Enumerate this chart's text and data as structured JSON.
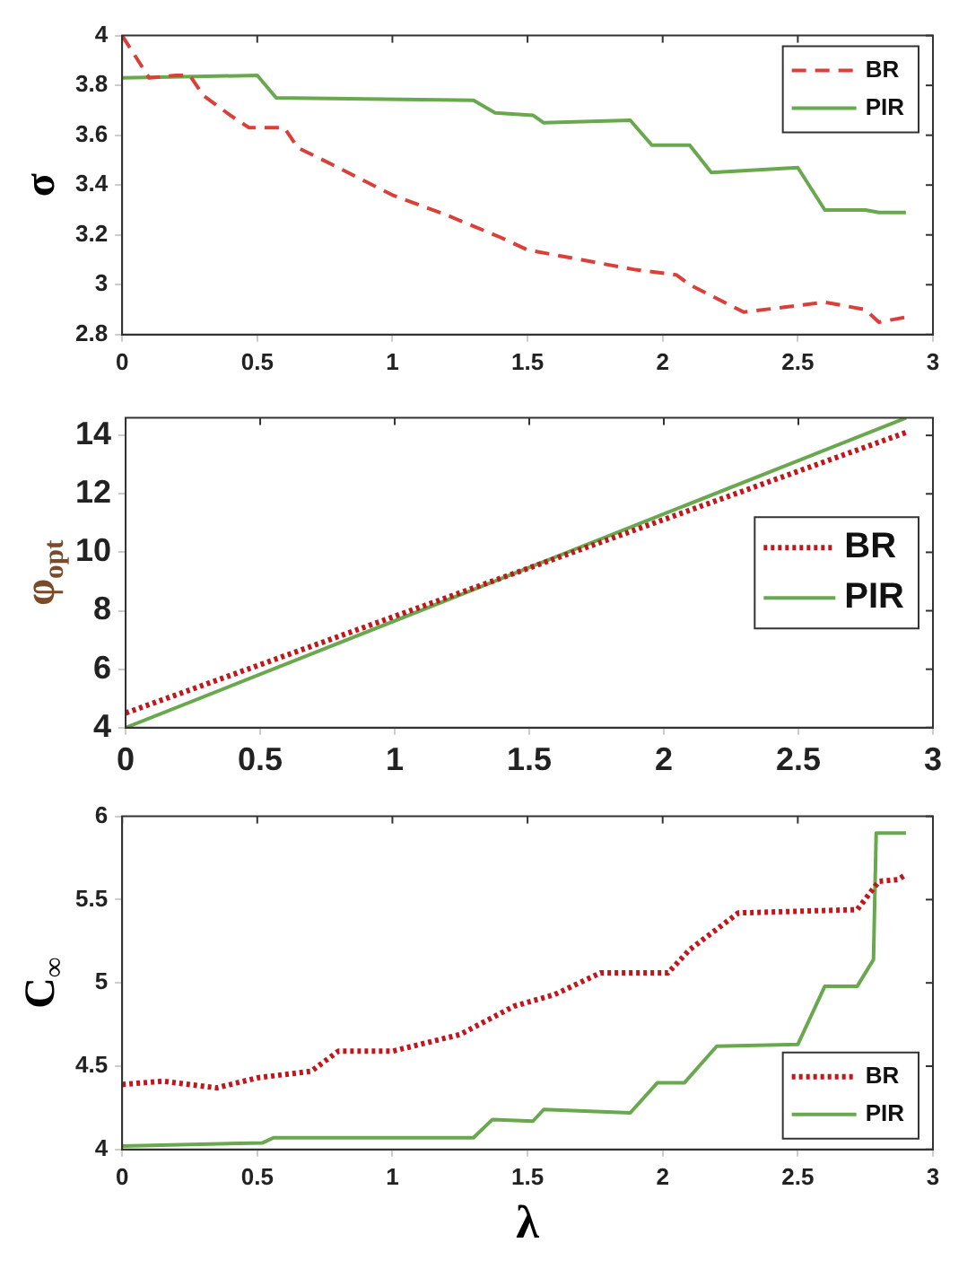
{
  "chart_data": [
    {
      "type": "line",
      "ylabel": "σ",
      "xlim": [
        0,
        3
      ],
      "xticks": [
        0,
        0.5,
        1,
        1.5,
        2,
        2.5,
        3
      ],
      "ylim": [
        2.8,
        4
      ],
      "yticks": [
        2.8,
        3,
        3.2,
        3.4,
        3.6,
        3.8,
        4
      ],
      "grid": false,
      "legend": "top right",
      "series": [
        {
          "name": "BR",
          "color": "#d9403a",
          "line_style": "dashed",
          "x": [
            0,
            0.1,
            0.2,
            0.25,
            0.3,
            0.4,
            0.47,
            0.6,
            0.65,
            0.8,
            1.0,
            1.2,
            1.4,
            1.5,
            1.7,
            1.9,
            2.05,
            2.1,
            2.3,
            2.45,
            2.6,
            2.75,
            2.8,
            2.9
          ],
          "values": [
            4.0,
            3.83,
            3.84,
            3.84,
            3.76,
            3.68,
            3.63,
            3.63,
            3.55,
            3.47,
            3.36,
            3.28,
            3.19,
            3.14,
            3.1,
            3.06,
            3.04,
            3.0,
            2.89,
            2.91,
            2.93,
            2.9,
            2.85,
            2.87
          ]
        },
        {
          "name": "PIR",
          "color": "#6aa84f",
          "line_style": "solid",
          "x": [
            0,
            0.5,
            0.57,
            1.3,
            1.38,
            1.52,
            1.56,
            1.88,
            1.96,
            2.1,
            2.18,
            2.5,
            2.6,
            2.75,
            2.8,
            2.9
          ],
          "values": [
            3.83,
            3.84,
            3.75,
            3.74,
            3.69,
            3.68,
            3.65,
            3.66,
            3.56,
            3.56,
            3.45,
            3.47,
            3.3,
            3.3,
            3.29,
            3.29
          ]
        }
      ]
    },
    {
      "type": "line",
      "ylabel": "φ$_{opt}$",
      "xlim": [
        0,
        3
      ],
      "xticks": [
        0,
        0.5,
        1,
        1.5,
        2,
        2.5,
        3
      ],
      "ylim": [
        4,
        14.6
      ],
      "yticks": [
        4,
        6,
        8,
        10,
        12,
        14
      ],
      "grid": false,
      "legend": "right",
      "series": [
        {
          "name": "BR",
          "color": "#c0171c",
          "line_style": "dotted",
          "x": [
            0,
            2.9
          ],
          "values": [
            4.5,
            14.1
          ]
        },
        {
          "name": "PIR",
          "color": "#6aa84f",
          "line_style": "solid",
          "x": [
            0,
            2.9
          ],
          "values": [
            4.0,
            14.6
          ]
        }
      ]
    },
    {
      "type": "line",
      "xlabel": "λ",
      "ylabel": "C$_{∞}$",
      "xlim": [
        0,
        3
      ],
      "xticks": [
        0,
        0.5,
        1,
        1.5,
        2,
        2.5,
        3
      ],
      "ylim": [
        4,
        6
      ],
      "yticks": [
        4,
        4.5,
        5,
        5.5,
        6
      ],
      "grid": false,
      "legend": "bottom right",
      "series": [
        {
          "name": "BR",
          "color": "#c0171c",
          "line_style": "dotted",
          "x": [
            0,
            0.15,
            0.35,
            0.5,
            0.7,
            0.8,
            1.0,
            1.25,
            1.45,
            1.6,
            1.77,
            2.02,
            2.1,
            2.28,
            2.5,
            2.72,
            2.8,
            2.87,
            2.9
          ],
          "values": [
            4.39,
            4.41,
            4.37,
            4.43,
            4.47,
            4.59,
            4.59,
            4.69,
            4.86,
            4.93,
            5.06,
            5.06,
            5.2,
            5.42,
            5.43,
            5.44,
            5.61,
            5.62,
            5.65
          ]
        },
        {
          "name": "PIR",
          "color": "#6aa84f",
          "line_style": "solid",
          "x": [
            0,
            0.52,
            0.56,
            1.3,
            1.37,
            1.52,
            1.56,
            1.88,
            1.98,
            2.08,
            2.2,
            2.5,
            2.6,
            2.72,
            2.78,
            2.79,
            2.9
          ],
          "values": [
            4.02,
            4.04,
            4.07,
            4.07,
            4.18,
            4.17,
            4.24,
            4.22,
            4.4,
            4.4,
            4.62,
            4.63,
            4.98,
            4.98,
            5.14,
            5.9,
            5.9
          ]
        }
      ]
    }
  ]
}
